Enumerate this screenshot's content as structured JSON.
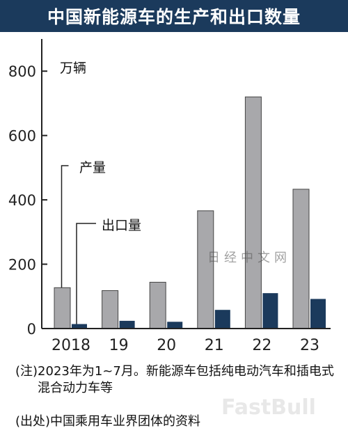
{
  "title": "中国新能源车的生产和出口数量",
  "chart_data": {
    "type": "bar",
    "unit": "万辆",
    "categories": [
      "2018",
      "19",
      "20",
      "21",
      "22",
      "23"
    ],
    "series": [
      {
        "name": "产量",
        "values": [
          127,
          118,
          144,
          366,
          720,
          433
        ],
        "color": "#a8a8ab"
      },
      {
        "name": "出口量",
        "values": [
          14,
          24,
          21,
          58,
          110,
          92
        ],
        "color": "#1b3a5c"
      }
    ],
    "ylim": [
      0,
      900
    ],
    "yticks": [
      0,
      200,
      400,
      600,
      800
    ]
  },
  "notes": [
    {
      "tag": "(注)",
      "text": "2023年为1~7月。新能源车包括纯电动汽车和插电式混合动力车等"
    },
    {
      "tag": "(出处)",
      "text": "中国乘用车业界团体的资料"
    }
  ],
  "watermarks": [
    "日经中文网",
    "FastBull"
  ]
}
